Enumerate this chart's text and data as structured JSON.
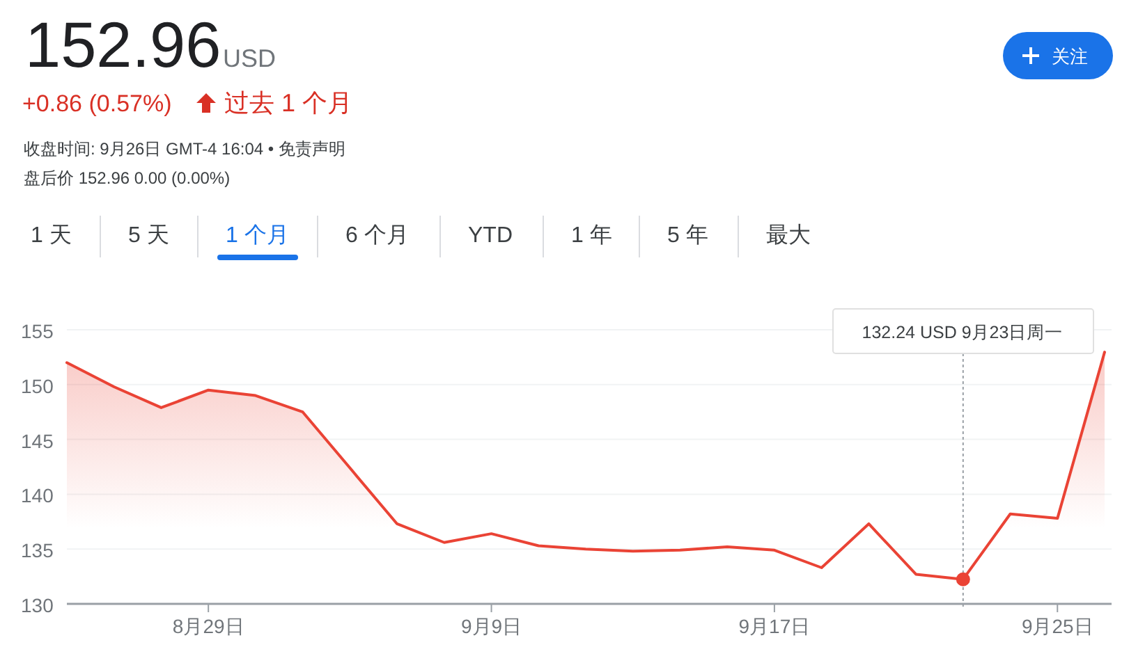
{
  "chart_data": {
    "type": "area",
    "title": "152.96",
    "annotations": [
      "USD",
      "+0.86 (0.57%)",
      "过去 1 个月",
      "收盘时间: 9月26日 GMT-4 16:04 • 免责声明",
      "盘后价 152.96 0.00 (0.00%)",
      "关注",
      "1 天",
      "5 天",
      "1 个月",
      "6 个月",
      "YTD",
      "1 年",
      "5 年",
      "最大",
      "132.24 USD  9月23日周一"
    ],
    "categories": [
      null,
      null,
      null,
      "8月29日",
      null,
      null,
      null,
      null,
      null,
      "9月9日",
      null,
      null,
      null,
      null,
      null,
      "9月17日",
      null,
      null,
      null,
      null,
      null,
      "9月25日",
      null
    ],
    "values": [
      152.0,
      149.8,
      147.9,
      149.5,
      149.0,
      147.5,
      142.4,
      137.3,
      135.6,
      136.4,
      135.3,
      135.0,
      134.8,
      134.9,
      135.2,
      134.9,
      133.3,
      137.3,
      132.7,
      132.24,
      138.2,
      137.8,
      152.96
    ],
    "color": "#ea4335",
    "ylim": [
      130,
      155
    ],
    "yticks": [
      130,
      135,
      140,
      145,
      150,
      155
    ],
    "grid": "y",
    "marker": "none",
    "line_style": "solid"
  }
}
